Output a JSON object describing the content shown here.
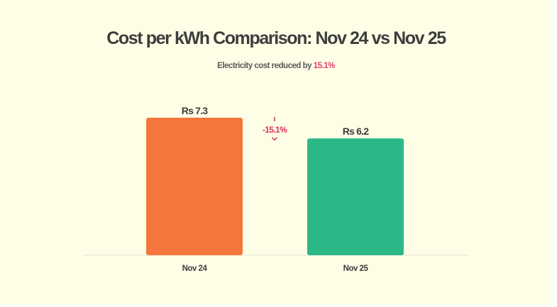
{
  "chart_data": {
    "type": "bar",
    "title": "Cost per kWh Comparison: Nov 24 vs Nov 25",
    "subtitle_prefix": "Electricity cost reduced by ",
    "subtitle_highlight": "15.1%",
    "categories": [
      "Nov 24",
      "Nov 25"
    ],
    "values": [
      7.3,
      6.2
    ],
    "value_labels": [
      "Rs 7.3",
      "Rs 6.2"
    ],
    "bar_colors": [
      "#f5763d",
      "#2bb886"
    ],
    "change_annotation": "-15.1%",
    "change_color": "#d6325f",
    "xlabel": "",
    "ylabel": "",
    "ylim": [
      0,
      8.1
    ],
    "grid": false,
    "legend": "none"
  }
}
